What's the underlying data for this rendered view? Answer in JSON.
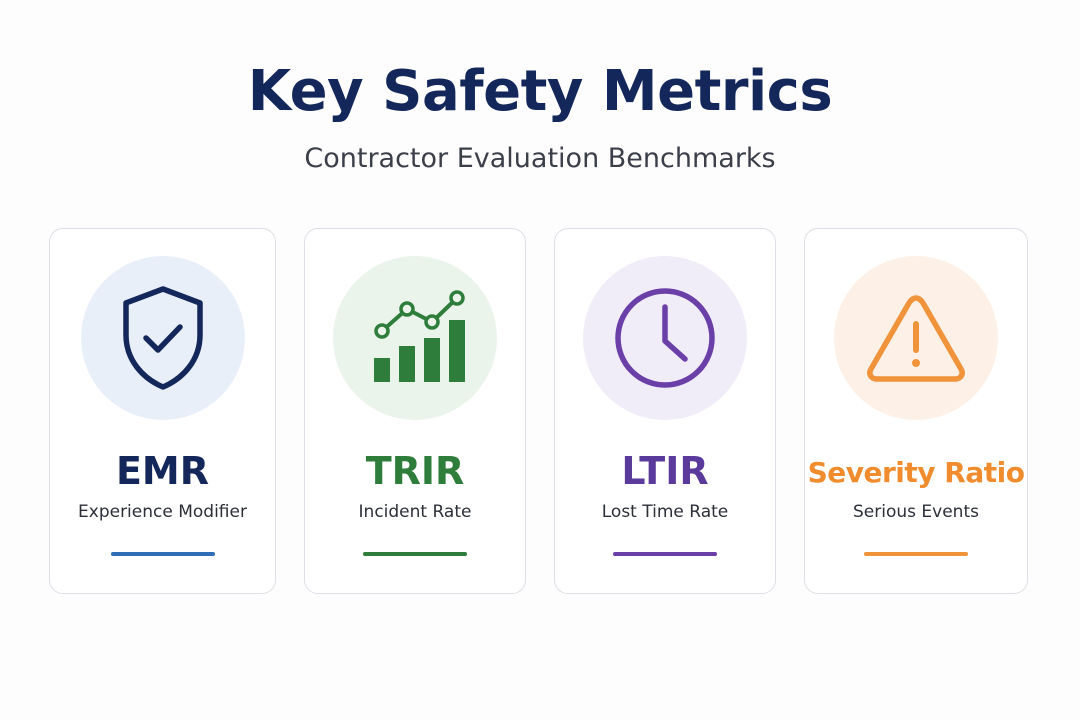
{
  "header": {
    "title": "Key Safety Metrics",
    "subtitle": "Contractor Evaluation Benchmarks"
  },
  "cards": [
    {
      "abbr": "EMR",
      "description": "Experience Modifier",
      "icon": "shield-check-icon",
      "accent_color": "#13275a",
      "line_color": "#2f6db5",
      "circle_color": "#e9eff9"
    },
    {
      "abbr": "TRIR",
      "description": "Incident Rate",
      "icon": "bar-chart-trend-icon",
      "accent_color": "#2e7d3a",
      "line_color": "#2e7d3a",
      "circle_color": "#eaf4ea"
    },
    {
      "abbr": "LTIR",
      "description": "Lost Time Rate",
      "icon": "clock-icon",
      "accent_color": "#5a3a9a",
      "line_color": "#6a3fa8",
      "circle_color": "#f0ecf8"
    },
    {
      "abbr": "Severity Ratio",
      "description": "Serious Events",
      "icon": "warning-triangle-icon",
      "accent_color": "#f08c2e",
      "line_color": "#f0933a",
      "circle_color": "#fdf0e6"
    }
  ]
}
